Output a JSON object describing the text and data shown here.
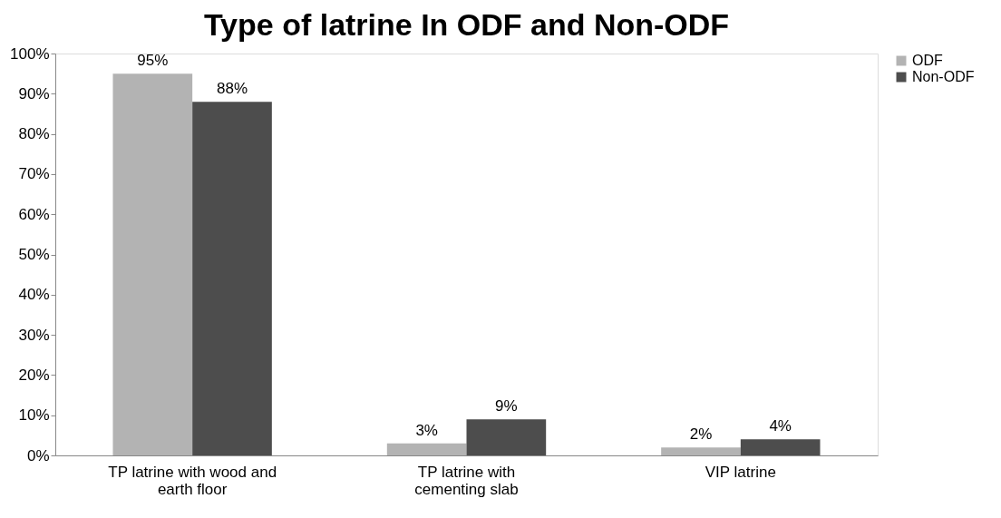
{
  "chart_data": {
    "type": "bar",
    "title": "Type of latrine In ODF and Non-ODF",
    "categories": [
      "TP latrine with wood and earth floor",
      "TP latrine with cementing slab",
      "VIP latrine"
    ],
    "series": [
      {
        "name": "ODF",
        "color": "#b3b3b3",
        "values": [
          95,
          3,
          2
        ],
        "value_labels": [
          "95%",
          "3%",
          "2%"
        ]
      },
      {
        "name": "Non-ODF",
        "color": "#4d4d4d",
        "values": [
          88,
          9,
          4
        ],
        "value_labels": [
          "88%",
          "9%",
          "4%"
        ]
      }
    ],
    "ylim": [
      0,
      100
    ],
    "yticks": [
      {
        "value": 0,
        "label": "0%"
      },
      {
        "value": 10,
        "label": "10%"
      },
      {
        "value": 20,
        "label": "20%"
      },
      {
        "value": 30,
        "label": "30%"
      },
      {
        "value": 40,
        "label": "40%"
      },
      {
        "value": 50,
        "label": "50%"
      },
      {
        "value": 60,
        "label": "60%"
      },
      {
        "value": 70,
        "label": "70%"
      },
      {
        "value": 80,
        "label": "80%"
      },
      {
        "value": 90,
        "label": "90%"
      },
      {
        "value": 100,
        "label": "100%"
      }
    ],
    "grid": false,
    "legend": "right"
  }
}
